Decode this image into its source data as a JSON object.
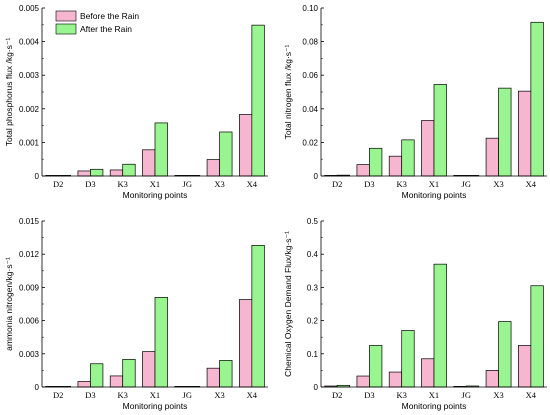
{
  "colors": {
    "before": "#f7b6cf",
    "after": "#99f58f",
    "axis": "#000000"
  },
  "chart_data": [
    {
      "type": "bar",
      "categories": [
        "D2",
        "D3",
        "K3",
        "X1",
        "JG",
        "X3",
        "X4"
      ],
      "series": [
        {
          "name": "Before the Rain",
          "values": [
            1e-05,
            0.00015,
            0.00018,
            0.00078,
            0.0,
            0.00049,
            0.00183
          ]
        },
        {
          "name": "After the Rain",
          "values": [
            1e-05,
            0.0002,
            0.00035,
            0.00158,
            0.0,
            0.00131,
            0.00449
          ]
        }
      ],
      "ylabel": "Total phosphorus flux /kg·s⁻¹",
      "xlabel": "Monitoring points",
      "ylim": [
        0,
        0.005
      ],
      "yticks": [
        "0",
        "0.001",
        "0.002",
        "0.003",
        "0.004",
        "0.005"
      ],
      "legend": "top-left"
    },
    {
      "type": "bar",
      "categories": [
        "D2",
        "D3",
        "K3",
        "X1",
        "JG",
        "X3",
        "X4"
      ],
      "series": [
        {
          "name": "Before the Rain",
          "values": [
            0.0003,
            0.0068,
            0.0118,
            0.033,
            0.0,
            0.0225,
            0.0505
          ]
        },
        {
          "name": "After the Rain",
          "values": [
            0.0005,
            0.0165,
            0.0215,
            0.0545,
            0.0002,
            0.0523,
            0.0915
          ]
        }
      ],
      "ylabel": "Total nitrogen flux /kg·s⁻¹",
      "xlabel": "Monitoring points",
      "ylim": [
        0,
        0.1
      ],
      "yticks": [
        "0",
        "0.02",
        "0.04",
        "0.06",
        "0.08",
        "0.10"
      ]
    },
    {
      "type": "bar",
      "categories": [
        "D2",
        "D3",
        "K3",
        "X1",
        "JG",
        "X3",
        "X4"
      ],
      "series": [
        {
          "name": "Before the Rain",
          "values": [
            3e-05,
            0.0005,
            0.001,
            0.0032,
            0.0,
            0.0017,
            0.0079
          ]
        },
        {
          "name": "After the Rain",
          "values": [
            5e-05,
            0.0021,
            0.0025,
            0.0081,
            3e-05,
            0.0024,
            0.0128
          ]
        }
      ],
      "ylabel": "ammonia nitrogen/kg·s⁻¹",
      "xlabel": "Monitoring points",
      "ylim": [
        0,
        0.015
      ],
      "yticks": [
        "0",
        "0.003",
        "0.006",
        "0.009",
        "0.012",
        "0.015"
      ]
    },
    {
      "type": "bar",
      "categories": [
        "D2",
        "D3",
        "K3",
        "X1",
        "JG",
        "X3",
        "X4"
      ],
      "series": [
        {
          "name": "Before the Rain",
          "values": [
            0.003,
            0.033,
            0.045,
            0.085,
            0.0,
            0.05,
            0.125
          ]
        },
        {
          "name": "After the Rain",
          "values": [
            0.005,
            0.125,
            0.17,
            0.37,
            0.003,
            0.197,
            0.305
          ]
        }
      ],
      "ylabel": "Chemical Oxygen Demand Flux/kg·s⁻¹",
      "xlabel": "Monitoring points",
      "ylim": [
        0,
        0.5
      ],
      "yticks": [
        "0",
        "0.1",
        "0.2",
        "0.3",
        "0.4",
        "0.5"
      ]
    }
  ]
}
